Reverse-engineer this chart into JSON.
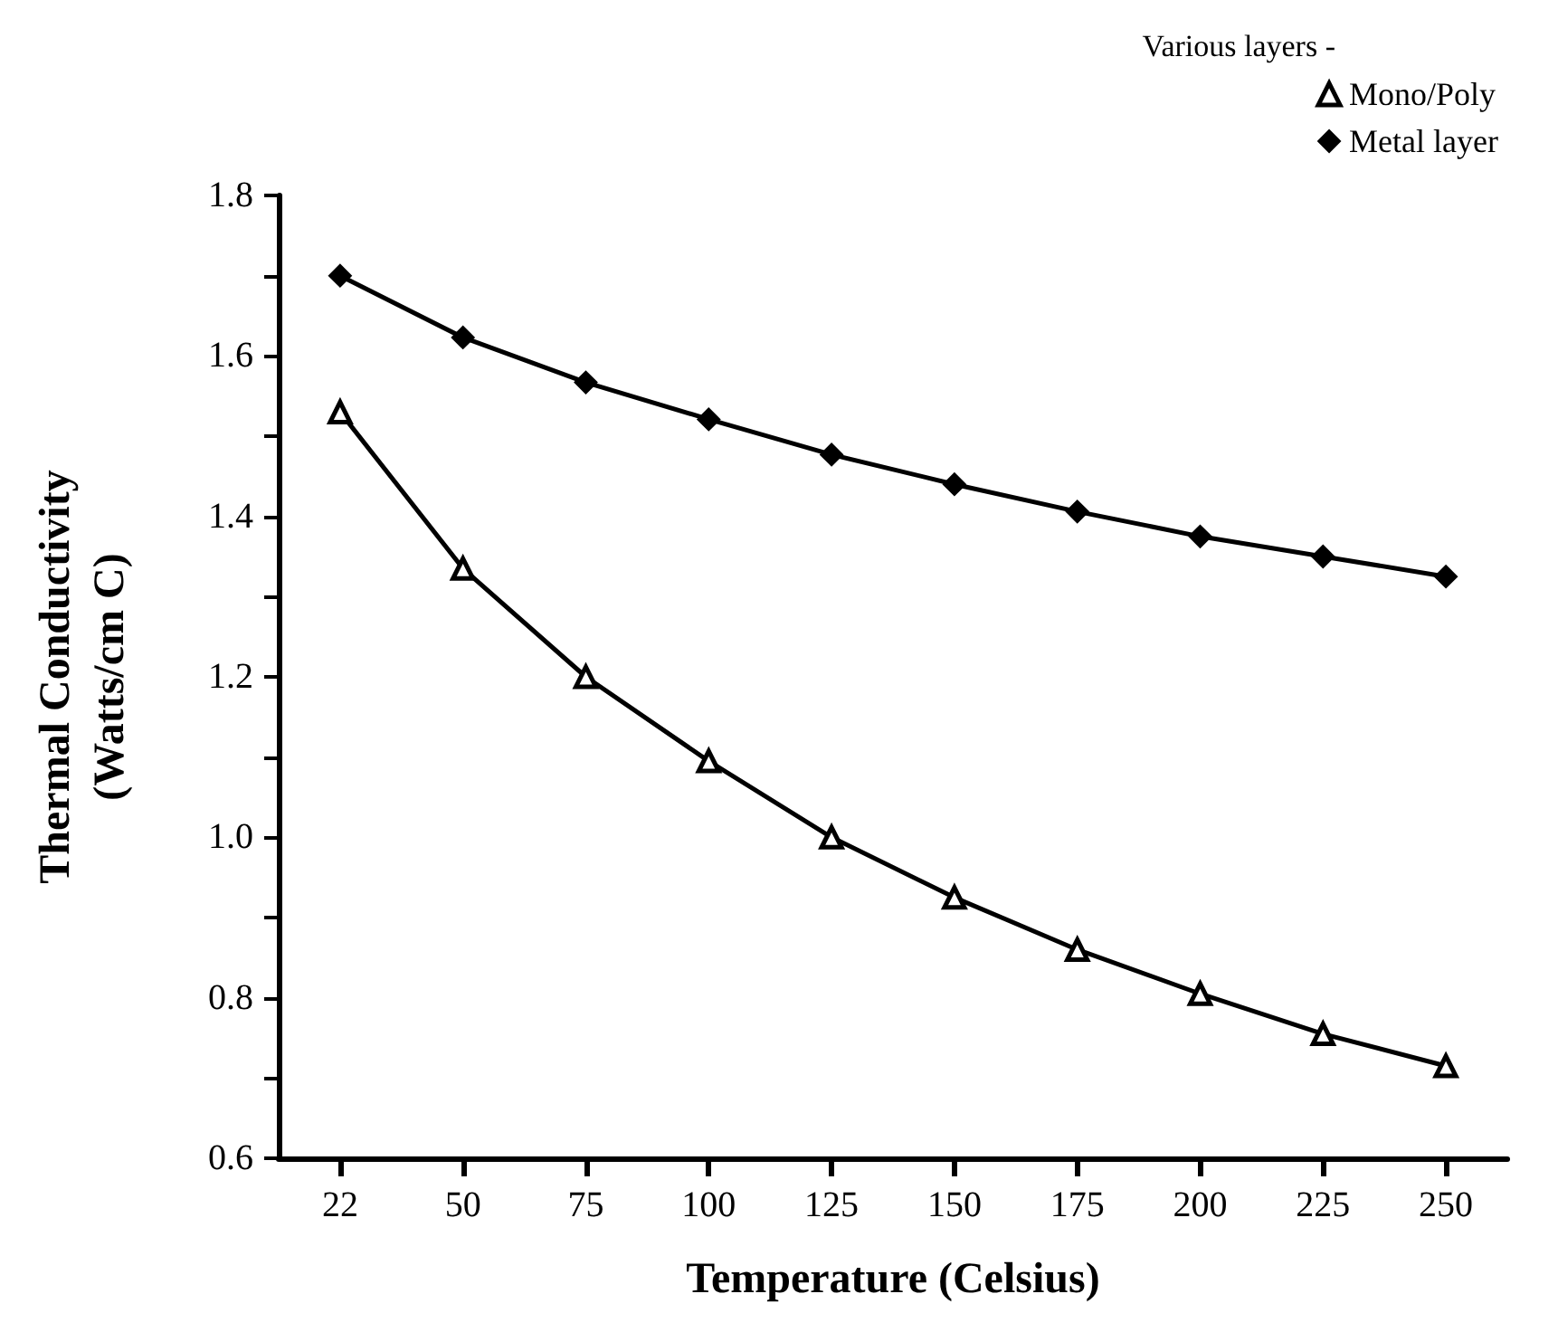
{
  "chart_data": {
    "type": "line",
    "xlabel": "Temperature (Celsius)",
    "ylabel": "Thermal Conductivity\n(Watts/cm C)",
    "legend_title": "Various layers -",
    "categories": [
      "22",
      "50",
      "75",
      "100",
      "125",
      "150",
      "175",
      "200",
      "225",
      "250"
    ],
    "series": [
      {
        "name": "Mono/Poly",
        "color": "#000000",
        "marker": "triangle",
        "values": [
          1.53,
          1.335,
          1.2,
          1.095,
          1.0,
          0.925,
          0.86,
          0.805,
          0.755,
          0.715
        ]
      },
      {
        "name": "Metal layer",
        "color": "#000000",
        "marker": "diamond",
        "values": [
          1.7,
          1.623,
          1.567,
          1.521,
          1.477,
          1.44,
          1.406,
          1.375,
          1.35,
          1.325
        ]
      }
    ],
    "ylim": [
      0.6,
      1.8
    ],
    "yticks": [
      0.6,
      {
        "value": 0.7,
        "label": null
      },
      0.8,
      {
        "value": 0.9,
        "label": null
      },
      {
        "value": 1.0,
        "label": "1.0"
      },
      {
        "value": 1.1,
        "label": null
      },
      1.2,
      {
        "value": 1.3,
        "label": null
      },
      1.4,
      {
        "value": 1.5,
        "label": null
      },
      1.6,
      {
        "value": 1.7,
        "label": null
      },
      1.8
    ],
    "grid": false,
    "legend": "top right",
    "line_style": "solid"
  }
}
